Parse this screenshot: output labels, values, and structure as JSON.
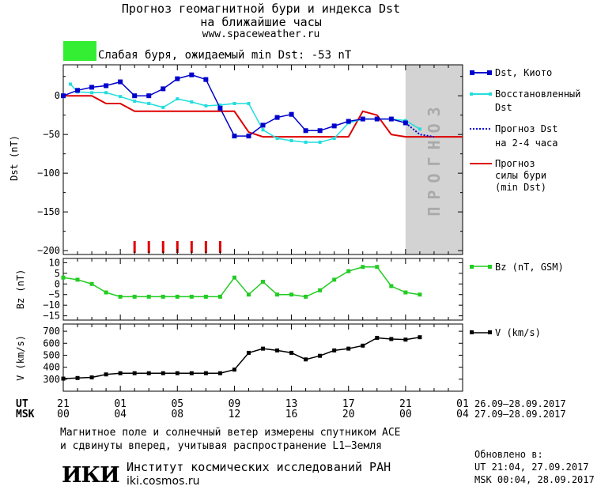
{
  "header": {
    "title_line1": "Прогноз геомагнитной бури и индекса Dst",
    "title_line2": "на ближайшие часы",
    "website": "www.spaceweather.ru",
    "storm_color": "#33ee33",
    "storm_text": "Слабая буря, ожидаемый min Dst: -53 nT"
  },
  "colors": {
    "dst": "#0000cc",
    "restored": "#22dddd",
    "forecast_dst": "#0000cc",
    "storm_min": "#dd0000",
    "bz": "#22cc22",
    "v": "#000000",
    "forecast_band": "#d3d3d3"
  },
  "chart_data": [
    {
      "type": "line",
      "ylabel": "Dst (nT)",
      "ylim": [
        -205,
        40
      ],
      "yticks": [
        "0",
        "−50",
        "−100",
        "−150",
        "−200"
      ],
      "x_hours_from_21UT": [
        0,
        28
      ],
      "forecast_band_label": "ПРОГНОЗ",
      "forecast_band_hours": [
        24,
        28
      ],
      "series": [
        {
          "name": "Dst, Киото",
          "x": [
            0,
            1,
            2,
            3,
            4,
            5,
            6,
            7,
            8,
            9,
            10,
            11,
            12,
            13,
            14,
            15,
            16,
            17,
            18,
            19,
            20,
            21,
            22,
            23,
            24
          ],
          "values": [
            0,
            7,
            11,
            13,
            18,
            0,
            0,
            9,
            22,
            27,
            21,
            -16,
            -52,
            -52,
            -38,
            -28,
            -24,
            -45,
            -45,
            -39,
            -33,
            -30,
            -30,
            -30,
            -35
          ]
        },
        {
          "name": "Восстановленный Dst",
          "x": [
            0.5,
            1,
            2,
            3,
            4,
            5,
            6,
            7,
            8,
            9,
            10,
            11,
            12,
            13,
            14,
            15,
            16,
            17,
            18,
            19,
            20,
            21,
            22,
            23,
            24,
            25
          ],
          "values": [
            15,
            5,
            4,
            4,
            -1,
            -7,
            -10,
            -15,
            -4,
            -8,
            -13,
            -12,
            -10,
            -10,
            -44,
            -55,
            -58,
            -60,
            -60,
            -55,
            -35,
            -30,
            -30,
            -30,
            -32,
            -43
          ]
        },
        {
          "name": "Прогноз Dst на 2-4 часа",
          "x": [
            24,
            25,
            26
          ],
          "values": [
            -35,
            -50,
            -53
          ]
        },
        {
          "name": "Прогноз силы бури (min Dst)",
          "x": [
            0,
            2,
            3,
            4,
            5,
            9,
            12,
            13,
            14,
            15,
            16,
            17,
            18,
            19,
            20,
            21,
            22,
            23,
            24,
            28
          ],
          "values": [
            0,
            0,
            -10,
            -10,
            -20,
            -20,
            -20,
            -47,
            -53,
            -53,
            -53,
            -53,
            -53,
            -53,
            -53,
            -20,
            -25,
            -50,
            -53,
            -53
          ]
        }
      ],
      "marker_hours": [
        5,
        6,
        7,
        8,
        9,
        10,
        11
      ]
    },
    {
      "type": "line",
      "ylabel": "Bz (nT)",
      "ylim": [
        -17,
        12
      ],
      "yticks": [
        "10",
        "5",
        "0",
        "−5",
        "−10",
        "−15"
      ],
      "series": [
        {
          "name": "Bz (nT, GSM)",
          "x": [
            0,
            1,
            2,
            3,
            4,
            5,
            6,
            7,
            8,
            9,
            10,
            11,
            12,
            13,
            14,
            15,
            16,
            17,
            18,
            19,
            20,
            21,
            22,
            23,
            24,
            25
          ],
          "values": [
            3,
            2,
            0,
            -4,
            -6,
            -6,
            -6,
            -6,
            -6,
            -6,
            -6,
            -6,
            3,
            -5,
            1,
            -5,
            -5,
            -6,
            -3,
            2,
            6,
            8,
            8,
            -1,
            -4,
            -5
          ]
        }
      ]
    },
    {
      "type": "line",
      "ylabel": "V (km/s)",
      "ylim": [
        200,
        760
      ],
      "yticks": [
        "700",
        "600",
        "500",
        "400",
        "300"
      ],
      "series": [
        {
          "name": "V (km/s)",
          "x": [
            0,
            1,
            2,
            3,
            4,
            5,
            6,
            7,
            8,
            9,
            10,
            11,
            12,
            13,
            14,
            15,
            16,
            17,
            18,
            19,
            20,
            21,
            22,
            23,
            24,
            25
          ],
          "values": [
            305,
            310,
            315,
            340,
            350,
            350,
            350,
            350,
            350,
            350,
            350,
            350,
            380,
            520,
            555,
            540,
            520,
            465,
            495,
            540,
            555,
            580,
            645,
            635,
            630,
            650
          ]
        }
      ]
    }
  ],
  "x_axis": {
    "ut_label": "UT",
    "msk_label": "MSK",
    "ut_ticks": [
      "21",
      "01",
      "05",
      "09",
      "13",
      "17",
      "21",
      "01"
    ],
    "msk_ticks": [
      "00",
      "04",
      "08",
      "12",
      "16",
      "20",
      "00",
      "04"
    ],
    "ut_range": "26.09–28.09.2017",
    "msk_range": "27.09–28.09.2017"
  },
  "footer": {
    "note_line1": "Магнитное поле и солнечный ветер измерены спутником ACE",
    "note_line2": "и сдвинуты вперед, учитывая распространение L1–Земля",
    "updated_label": "Обновлено в:",
    "updated_ut": "UT  21:04, 27.09.2017",
    "updated_msk": "MSK 00:04, 28.09.2017",
    "logo_text": "ИКИ",
    "institute": "Институт космических исследований РАН",
    "institute_site": "iki.cosmos.ru"
  },
  "legend": {
    "dst_line1": "Dst, Киото",
    "restored_line1": "Восстановленный",
    "restored_line2": "Dst",
    "forecast_line1": "Прогноз Dst",
    "forecast_line2": "на 2-4 часа",
    "storm_line1": "Прогноз",
    "storm_line2": "силы бури",
    "storm_line3": "(min Dst)",
    "bz": "Bz (nT, GSM)",
    "v": "V (km/s)"
  }
}
